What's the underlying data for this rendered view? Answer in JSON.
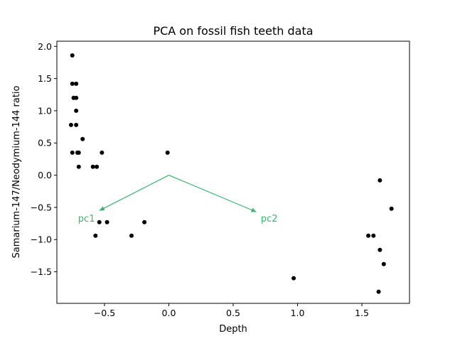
{
  "chart_data": {
    "type": "scatter",
    "title": "PCA on fossil fish teeth data",
    "xlabel": "Depth",
    "ylabel": "Samarium-147/Neodymium-144 ratio",
    "xlim": [
      -0.87,
      1.87
    ],
    "ylim": [
      -1.99,
      2.08
    ],
    "xticks": [
      -0.5,
      0.0,
      0.5,
      1.0,
      1.5
    ],
    "xtick_labels": [
      "−0.5",
      "0.0",
      "0.5",
      "1.0",
      "1.5"
    ],
    "yticks": [
      2.0,
      1.5,
      1.0,
      0.5,
      0.0,
      -0.5,
      -1.0,
      -1.5
    ],
    "ytick_labels": [
      "2.0",
      "1.5",
      "1.0",
      "0.5",
      "0.0",
      "−0.5",
      "−1.0",
      "−1.5"
    ],
    "grid": false,
    "point_color": "#000000",
    "arrow_color": "#3cb371",
    "points": [
      {
        "x": -0.75,
        "y": 1.86
      },
      {
        "x": -0.75,
        "y": 1.42
      },
      {
        "x": -0.72,
        "y": 1.42
      },
      {
        "x": -0.74,
        "y": 1.2
      },
      {
        "x": -0.72,
        "y": 1.2
      },
      {
        "x": -0.72,
        "y": 1.0
      },
      {
        "x": -0.76,
        "y": 0.78
      },
      {
        "x": -0.72,
        "y": 0.78
      },
      {
        "x": -0.67,
        "y": 0.56
      },
      {
        "x": -0.75,
        "y": 0.35
      },
      {
        "x": -0.71,
        "y": 0.35
      },
      {
        "x": -0.7,
        "y": 0.35
      },
      {
        "x": -0.52,
        "y": 0.35
      },
      {
        "x": -0.7,
        "y": 0.13
      },
      {
        "x": -0.59,
        "y": 0.13
      },
      {
        "x": -0.56,
        "y": 0.13
      },
      {
        "x": -0.54,
        "y": -0.73
      },
      {
        "x": -0.48,
        "y": -0.73
      },
      {
        "x": -0.57,
        "y": -0.94
      },
      {
        "x": -0.29,
        "y": -0.94
      },
      {
        "x": -0.19,
        "y": -0.73
      },
      {
        "x": -0.01,
        "y": 0.35
      },
      {
        "x": 0.97,
        "y": -1.6
      },
      {
        "x": 1.55,
        "y": -0.94
      },
      {
        "x": 1.59,
        "y": -0.94
      },
      {
        "x": 1.64,
        "y": -0.08
      },
      {
        "x": 1.73,
        "y": -0.52
      },
      {
        "x": 1.64,
        "y": -1.16
      },
      {
        "x": 1.67,
        "y": -1.38
      },
      {
        "x": 1.63,
        "y": -1.81
      }
    ],
    "arrows": [
      {
        "label": "pc1",
        "x0": 0.0,
        "y0": 0.0,
        "x1": -0.54,
        "y1": -0.55,
        "label_x": -0.64,
        "label_y": -0.67
      },
      {
        "label": "pc2",
        "x0": 0.0,
        "y0": 0.0,
        "x1": 0.68,
        "y1": -0.57,
        "label_x": 0.78,
        "label_y": -0.67
      }
    ]
  }
}
